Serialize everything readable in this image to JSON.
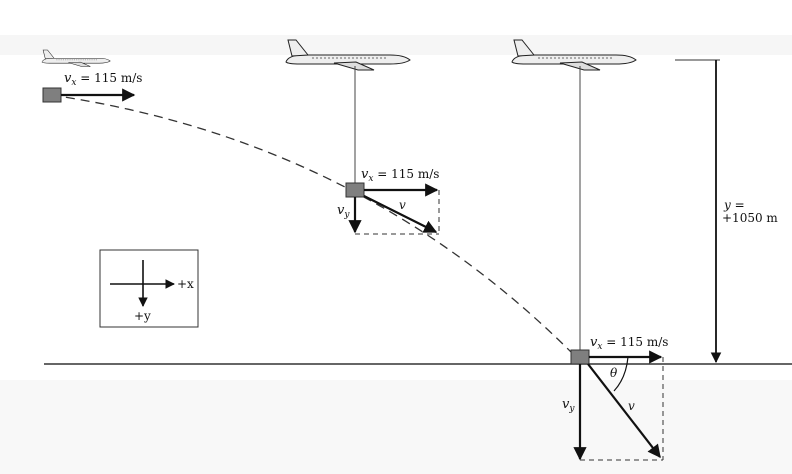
{
  "colors": {
    "ink": "#111111",
    "plane_body": "#eeeeee",
    "box": "#7f7f7f",
    "faint": "#e6e6e6"
  },
  "icons": [
    "airplane-icon",
    "package-box-icon",
    "axes-icon"
  ],
  "labels": {
    "vx_left": "115 m/s",
    "vx_mid": "115 m/s",
    "vx_right": "115 m/s",
    "v_mid": "v",
    "vy_mid": "v",
    "v_right": "v",
    "vy_right": "v",
    "theta": "θ",
    "y_top": "y =",
    "y_value": "+1050 m",
    "axis_x": "+x",
    "axis_y": "+y"
  }
}
